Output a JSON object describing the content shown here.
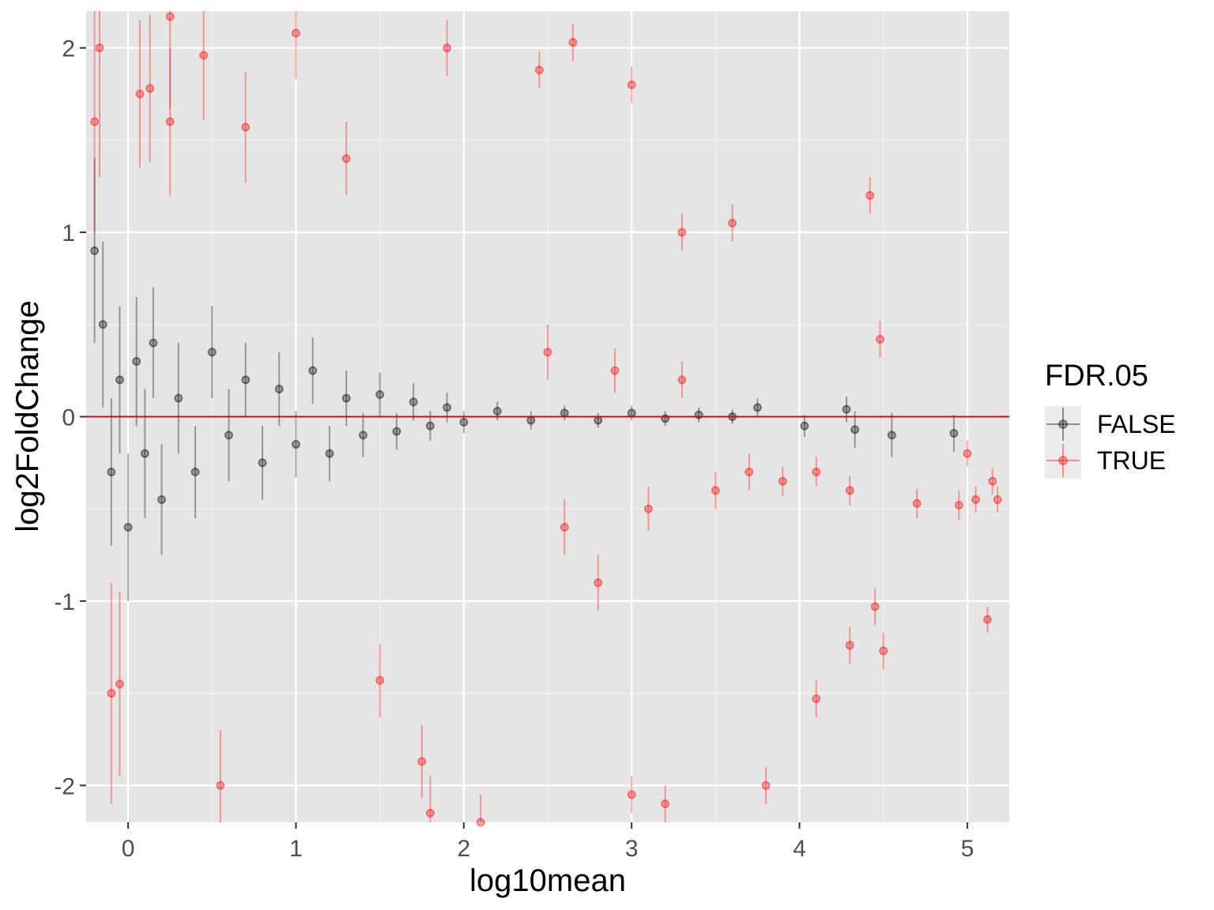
{
  "chart_data": {
    "type": "scatter",
    "title": "",
    "xlabel": "log10mean",
    "ylabel": "log2FoldChange",
    "xlim": [
      -0.25,
      5.25
    ],
    "ylim": [
      -2.2,
      2.2
    ],
    "x_ticks": [
      0,
      1,
      2,
      3,
      4,
      5
    ],
    "x_tick_labels": [
      "0",
      "1",
      "2",
      "3",
      "4",
      "5"
    ],
    "y_ticks": [
      -2,
      -1,
      0,
      1,
      2
    ],
    "y_tick_labels": [
      "-2",
      "-1",
      "0",
      "1",
      "2"
    ],
    "grid": true,
    "background": "#e5e5e5",
    "reference_line": {
      "y": 0,
      "color": "#e00000"
    },
    "legend": {
      "title": "FDR.05",
      "position": "right",
      "entries": [
        {
          "label": "FALSE",
          "color": "#000000"
        },
        {
          "label": "TRUE",
          "color": "#ff0000"
        }
      ]
    },
    "series": [
      {
        "name": "FALSE",
        "color": "#000000",
        "marker": "circle with vertical error bar",
        "points": [
          [
            -0.2,
            0.9,
            0.5
          ],
          [
            -0.15,
            0.5,
            0.45
          ],
          [
            -0.1,
            -0.3,
            0.4
          ],
          [
            -0.05,
            0.2,
            0.4
          ],
          [
            0.0,
            -0.6,
            0.4
          ],
          [
            0.05,
            0.3,
            0.35
          ],
          [
            0.1,
            -0.2,
            0.35
          ],
          [
            0.15,
            0.4,
            0.3
          ],
          [
            0.2,
            -0.45,
            0.3
          ],
          [
            0.3,
            0.1,
            0.3
          ],
          [
            0.4,
            -0.3,
            0.25
          ],
          [
            0.5,
            0.35,
            0.25
          ],
          [
            0.6,
            -0.1,
            0.25
          ],
          [
            0.7,
            0.2,
            0.2
          ],
          [
            0.8,
            -0.25,
            0.2
          ],
          [
            0.9,
            0.15,
            0.2
          ],
          [
            1.0,
            -0.15,
            0.18
          ],
          [
            1.1,
            0.25,
            0.18
          ],
          [
            1.2,
            -0.2,
            0.15
          ],
          [
            1.3,
            0.1,
            0.15
          ],
          [
            1.4,
            -0.1,
            0.12
          ],
          [
            1.5,
            0.12,
            0.12
          ],
          [
            1.6,
            -0.08,
            0.1
          ],
          [
            1.7,
            0.08,
            0.1
          ],
          [
            1.8,
            -0.05,
            0.08
          ],
          [
            1.9,
            0.05,
            0.08
          ],
          [
            2.0,
            -0.03,
            0.06
          ],
          [
            2.2,
            0.03,
            0.05
          ],
          [
            2.4,
            -0.02,
            0.05
          ],
          [
            2.6,
            0.02,
            0.04
          ],
          [
            2.8,
            -0.02,
            0.04
          ],
          [
            3.0,
            0.02,
            0.04
          ],
          [
            3.2,
            -0.01,
            0.04
          ],
          [
            3.4,
            0.01,
            0.04
          ],
          [
            3.6,
            0.0,
            0.04
          ],
          [
            3.75,
            0.05,
            0.05
          ],
          [
            4.03,
            -0.05,
            0.06
          ],
          [
            4.28,
            0.04,
            0.07
          ],
          [
            4.33,
            -0.07,
            0.1
          ],
          [
            4.55,
            -0.1,
            0.12
          ],
          [
            4.92,
            -0.09,
            0.1
          ]
        ]
      },
      {
        "name": "TRUE",
        "color": "#ff0000",
        "marker": "circle with vertical error bar",
        "points": [
          [
            -0.2,
            1.6,
            0.6
          ],
          [
            -0.17,
            2.0,
            0.7
          ],
          [
            -0.1,
            -1.5,
            0.6
          ],
          [
            -0.05,
            -1.45,
            0.5
          ],
          [
            0.07,
            1.75,
            0.4
          ],
          [
            0.13,
            1.78,
            0.4
          ],
          [
            0.25,
            1.6,
            0.4
          ],
          [
            0.25,
            2.17,
            0.5
          ],
          [
            0.45,
            1.96,
            0.35
          ],
          [
            0.55,
            -2.0,
            0.3
          ],
          [
            0.7,
            1.57,
            0.3
          ],
          [
            1.0,
            2.08,
            0.25
          ],
          [
            1.3,
            1.4,
            0.2
          ],
          [
            1.5,
            -1.43,
            0.2
          ],
          [
            1.75,
            -1.87,
            0.2
          ],
          [
            1.8,
            -2.15,
            0.2
          ],
          [
            1.9,
            2.0,
            0.15
          ],
          [
            2.1,
            -2.2,
            0.15
          ],
          [
            2.45,
            1.88,
            0.1
          ],
          [
            2.65,
            2.03,
            0.1
          ],
          [
            3.0,
            1.8,
            0.1
          ],
          [
            3.0,
            -2.05,
            0.1
          ],
          [
            3.2,
            -2.1,
            0.1
          ],
          [
            3.3,
            1.0,
            0.1
          ],
          [
            3.6,
            1.05,
            0.1
          ],
          [
            3.8,
            -2.0,
            0.1
          ],
          [
            4.1,
            -1.53,
            0.1
          ],
          [
            4.3,
            -1.24,
            0.1
          ],
          [
            4.42,
            1.2,
            0.1
          ],
          [
            4.45,
            -1.03,
            0.1
          ],
          [
            4.48,
            0.42,
            0.1
          ],
          [
            4.5,
            -1.27,
            0.1
          ],
          [
            4.7,
            -0.47,
            0.08
          ],
          [
            4.95,
            -0.48,
            0.08
          ],
          [
            5.0,
            -0.2,
            0.07
          ],
          [
            5.05,
            -0.45,
            0.07
          ],
          [
            5.12,
            -1.1,
            0.07
          ],
          [
            5.15,
            -0.35,
            0.07
          ],
          [
            5.18,
            -0.45,
            0.07
          ],
          [
            2.5,
            0.35,
            0.15
          ],
          [
            2.6,
            -0.6,
            0.15
          ],
          [
            2.8,
            -0.9,
            0.15
          ],
          [
            2.9,
            0.25,
            0.12
          ],
          [
            3.1,
            -0.5,
            0.12
          ],
          [
            3.3,
            0.2,
            0.1
          ],
          [
            3.5,
            -0.4,
            0.1
          ],
          [
            3.7,
            -0.3,
            0.1
          ],
          [
            3.9,
            -0.35,
            0.08
          ],
          [
            4.1,
            -0.3,
            0.08
          ],
          [
            4.3,
            -0.4,
            0.08
          ]
        ]
      }
    ]
  }
}
